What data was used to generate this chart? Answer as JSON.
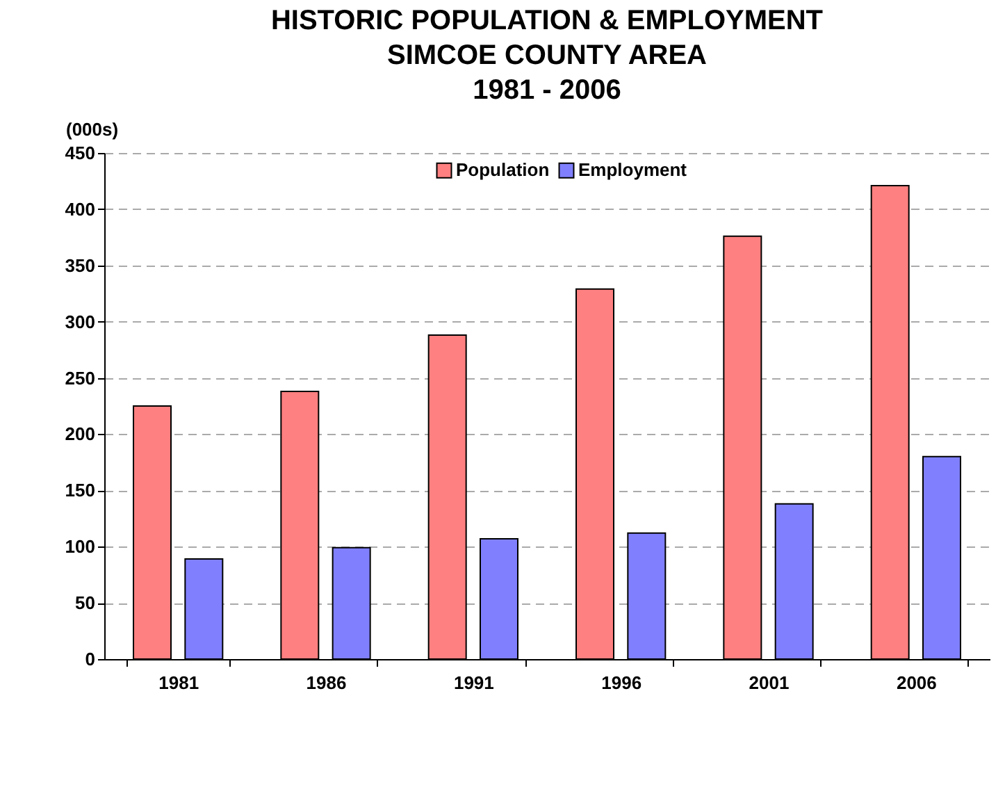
{
  "chart_data": {
    "type": "bar",
    "title": "HISTORIC POPULATION & EMPLOYMENT\nSIMCOE COUNTY AREA\n1981 - 2006",
    "ylabel": "(000s)",
    "categories": [
      "1981",
      "1986",
      "1991",
      "1996",
      "2001",
      "2006"
    ],
    "series": [
      {
        "name": "Population",
        "color": "#ff8080",
        "values": [
          225,
          238,
          288,
          329,
          376,
          421
        ]
      },
      {
        "name": "Employment",
        "color": "#8080ff",
        "values": [
          89,
          99,
          107,
          112,
          138,
          180
        ]
      }
    ],
    "ylim": [
      0,
      450
    ],
    "yticks": [
      0,
      50,
      100,
      150,
      200,
      250,
      300,
      350,
      400,
      450
    ],
    "grid": "y",
    "legend": "top"
  }
}
